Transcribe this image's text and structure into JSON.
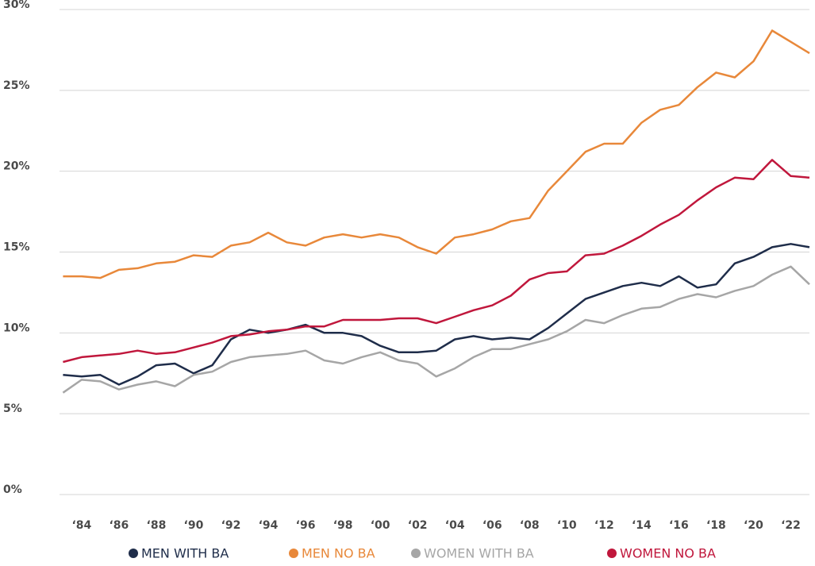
{
  "chart_data": {
    "type": "line",
    "x": [
      1983,
      1984,
      1985,
      1986,
      1987,
      1988,
      1989,
      1990,
      1991,
      1992,
      1993,
      1994,
      1995,
      1996,
      1997,
      1998,
      1999,
      2000,
      2001,
      2002,
      2003,
      2004,
      2005,
      2006,
      2007,
      2008,
      2009,
      2010,
      2011,
      2012,
      2013,
      2014,
      2015,
      2016,
      2017,
      2018,
      2019,
      2020,
      2021,
      2022,
      2023
    ],
    "series": [
      {
        "name": "MEN WITH BA",
        "color": "#1f2d4a",
        "values": [
          7.4,
          7.3,
          7.4,
          6.8,
          7.3,
          8.0,
          8.1,
          7.5,
          8.0,
          9.6,
          10.2,
          10.0,
          10.2,
          10.5,
          10.0,
          10.0,
          9.8,
          9.2,
          8.8,
          8.8,
          8.9,
          9.6,
          9.8,
          9.6,
          9.7,
          9.6,
          10.3,
          11.2,
          12.1,
          12.5,
          12.9,
          13.1,
          12.9,
          13.5,
          12.8,
          13.0,
          14.3,
          14.7,
          15.3,
          15.5,
          15.3
        ]
      },
      {
        "name": "MEN NO BA",
        "color": "#e8883a",
        "values": [
          13.5,
          13.5,
          13.4,
          13.9,
          14.0,
          14.3,
          14.4,
          14.8,
          14.7,
          15.4,
          15.6,
          16.2,
          15.6,
          15.4,
          15.9,
          16.1,
          15.9,
          16.1,
          15.9,
          15.3,
          14.9,
          15.9,
          16.1,
          16.4,
          16.9,
          17.1,
          18.8,
          20.0,
          21.2,
          21.7,
          21.7,
          23.0,
          23.8,
          24.1,
          25.2,
          26.1,
          25.8,
          26.8,
          28.7,
          28.0,
          27.3
        ]
      },
      {
        "name": "WOMEN WITH BA",
        "color": "#a6a6a6",
        "values": [
          6.3,
          7.1,
          7.0,
          6.5,
          6.8,
          7.0,
          6.7,
          7.4,
          7.6,
          8.2,
          8.5,
          8.6,
          8.7,
          8.9,
          8.3,
          8.1,
          8.5,
          8.8,
          8.3,
          8.1,
          7.3,
          7.8,
          8.5,
          9.0,
          9.0,
          9.3,
          9.6,
          10.1,
          10.8,
          10.6,
          11.1,
          11.5,
          11.6,
          12.1,
          12.4,
          12.2,
          12.6,
          12.9,
          13.6,
          14.1,
          13.0
        ]
      },
      {
        "name": "WOMEN NO BA",
        "color": "#c0173c",
        "values": [
          8.2,
          8.5,
          8.6,
          8.7,
          8.9,
          8.7,
          8.8,
          9.1,
          9.4,
          9.8,
          9.9,
          10.1,
          10.2,
          10.4,
          10.4,
          10.8,
          10.8,
          10.8,
          10.9,
          10.9,
          10.6,
          11.0,
          11.4,
          11.7,
          12.3,
          13.3,
          13.7,
          13.8,
          14.8,
          14.9,
          15.4,
          16.0,
          16.7,
          17.3,
          18.2,
          19.0,
          19.6,
          19.5,
          20.7,
          19.7,
          19.6
        ]
      }
    ],
    "xlim": [
      1982.9,
      2023.0
    ],
    "xticks": [
      {
        "value": 1984,
        "label": "‘84"
      },
      {
        "value": 1986,
        "label": "‘86"
      },
      {
        "value": 1988,
        "label": "‘88"
      },
      {
        "value": 1990,
        "label": "‘90"
      },
      {
        "value": 1992,
        "label": "‘92"
      },
      {
        "value": 1994,
        "label": "‘94"
      },
      {
        "value": 1996,
        "label": "‘96"
      },
      {
        "value": 1998,
        "label": "‘98"
      },
      {
        "value": 2000,
        "label": "‘00"
      },
      {
        "value": 2002,
        "label": "‘02"
      },
      {
        "value": 2004,
        "label": "‘04"
      },
      {
        "value": 2006,
        "label": "‘06"
      },
      {
        "value": 2008,
        "label": "‘08"
      },
      {
        "value": 2010,
        "label": "‘10"
      },
      {
        "value": 2012,
        "label": "‘12"
      },
      {
        "value": 2014,
        "label": "‘14"
      },
      {
        "value": 2016,
        "label": "‘16"
      },
      {
        "value": 2018,
        "label": "‘18"
      },
      {
        "value": 2020,
        "label": "‘20"
      },
      {
        "value": 2022,
        "label": "‘22"
      }
    ],
    "ylim": [
      0,
      30
    ],
    "yticks": [
      {
        "value": 0,
        "label": "0%"
      },
      {
        "value": 5,
        "label": "5%"
      },
      {
        "value": 10,
        "label": "10%"
      },
      {
        "value": 15,
        "label": "15%"
      },
      {
        "value": 20,
        "label": "20%"
      },
      {
        "value": 25,
        "label": "25%"
      },
      {
        "value": 30,
        "label": "30%"
      }
    ],
    "grid": true,
    "legend": "bottom"
  }
}
